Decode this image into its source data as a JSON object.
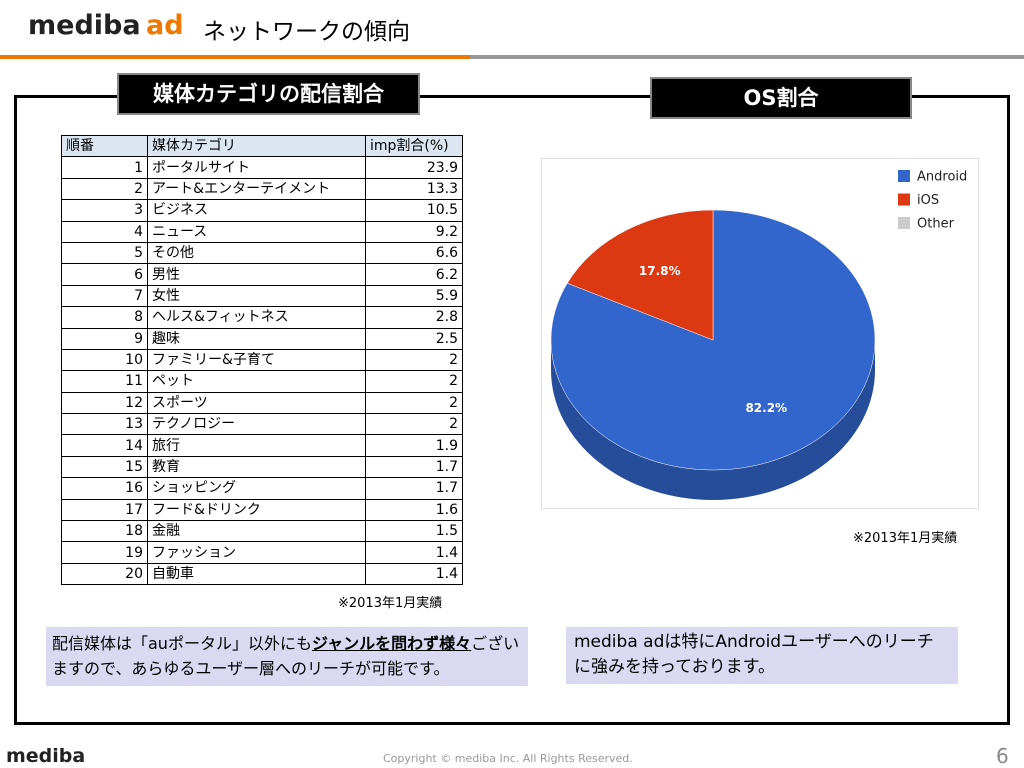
{
  "header": {
    "logo": "mediba",
    "logo_ad": "ad",
    "title": "ネットワークの傾向"
  },
  "left_panel": {
    "label": "媒体カテゴリの配信割合",
    "note": "※2013年1月実績",
    "table": {
      "header": [
        "順番",
        "媒体カテゴリ",
        "imp割合(%)"
      ],
      "rows": [
        [
          1,
          "ポータルサイト",
          23.9
        ],
        [
          2,
          "アート&エンターテイメント",
          13.3
        ],
        [
          3,
          "ビジネス",
          10.5
        ],
        [
          4,
          "ニュース",
          9.2
        ],
        [
          5,
          "その他",
          6.6
        ],
        [
          6,
          "男性",
          6.2
        ],
        [
          7,
          "女性",
          5.9
        ],
        [
          8,
          "ヘルス&フィットネス",
          2.8
        ],
        [
          9,
          "趣味",
          2.5
        ],
        [
          10,
          "ファミリー&子育て",
          2
        ],
        [
          11,
          "ペット",
          2
        ],
        [
          12,
          "スポーツ",
          2
        ],
        [
          13,
          "テクノロジー",
          2
        ],
        [
          14,
          "旅行",
          1.9
        ],
        [
          15,
          "教育",
          1.7
        ],
        [
          16,
          "ショッピング",
          1.7
        ],
        [
          17,
          "フード&ドリンク",
          1.6
        ],
        [
          18,
          "金融",
          1.5
        ],
        [
          19,
          "ファッション",
          1.4
        ],
        [
          20,
          "自動車",
          1.4
        ]
      ]
    },
    "comment": {
      "text1": "配信媒体は「auポータル」以外にも",
      "emphasis": "ジャンルを問わず様々",
      "text2": "ございますので、あらゆるユーザー層へのリーチが可能です。"
    }
  },
  "right_panel": {
    "label": "OS割合",
    "note": "※2013年1月実績",
    "comment": "mediba adは特にAndroidユーザーへのリーチに強みを持っております。"
  },
  "chart_data": {
    "type": "pie",
    "categories": [
      "Android",
      "iOS",
      "Other"
    ],
    "values": [
      82.2,
      17.8,
      0
    ],
    "value_labels": [
      "82.2%",
      "17.8%",
      null
    ],
    "colors": [
      "#3366cc",
      "#dc3912",
      "#cccccc"
    ],
    "legend": "top-right"
  },
  "footer": {
    "logo": "mediba",
    "copyright": "Copyright © mediba Inc. All Rights Reserved.",
    "page": "6"
  }
}
